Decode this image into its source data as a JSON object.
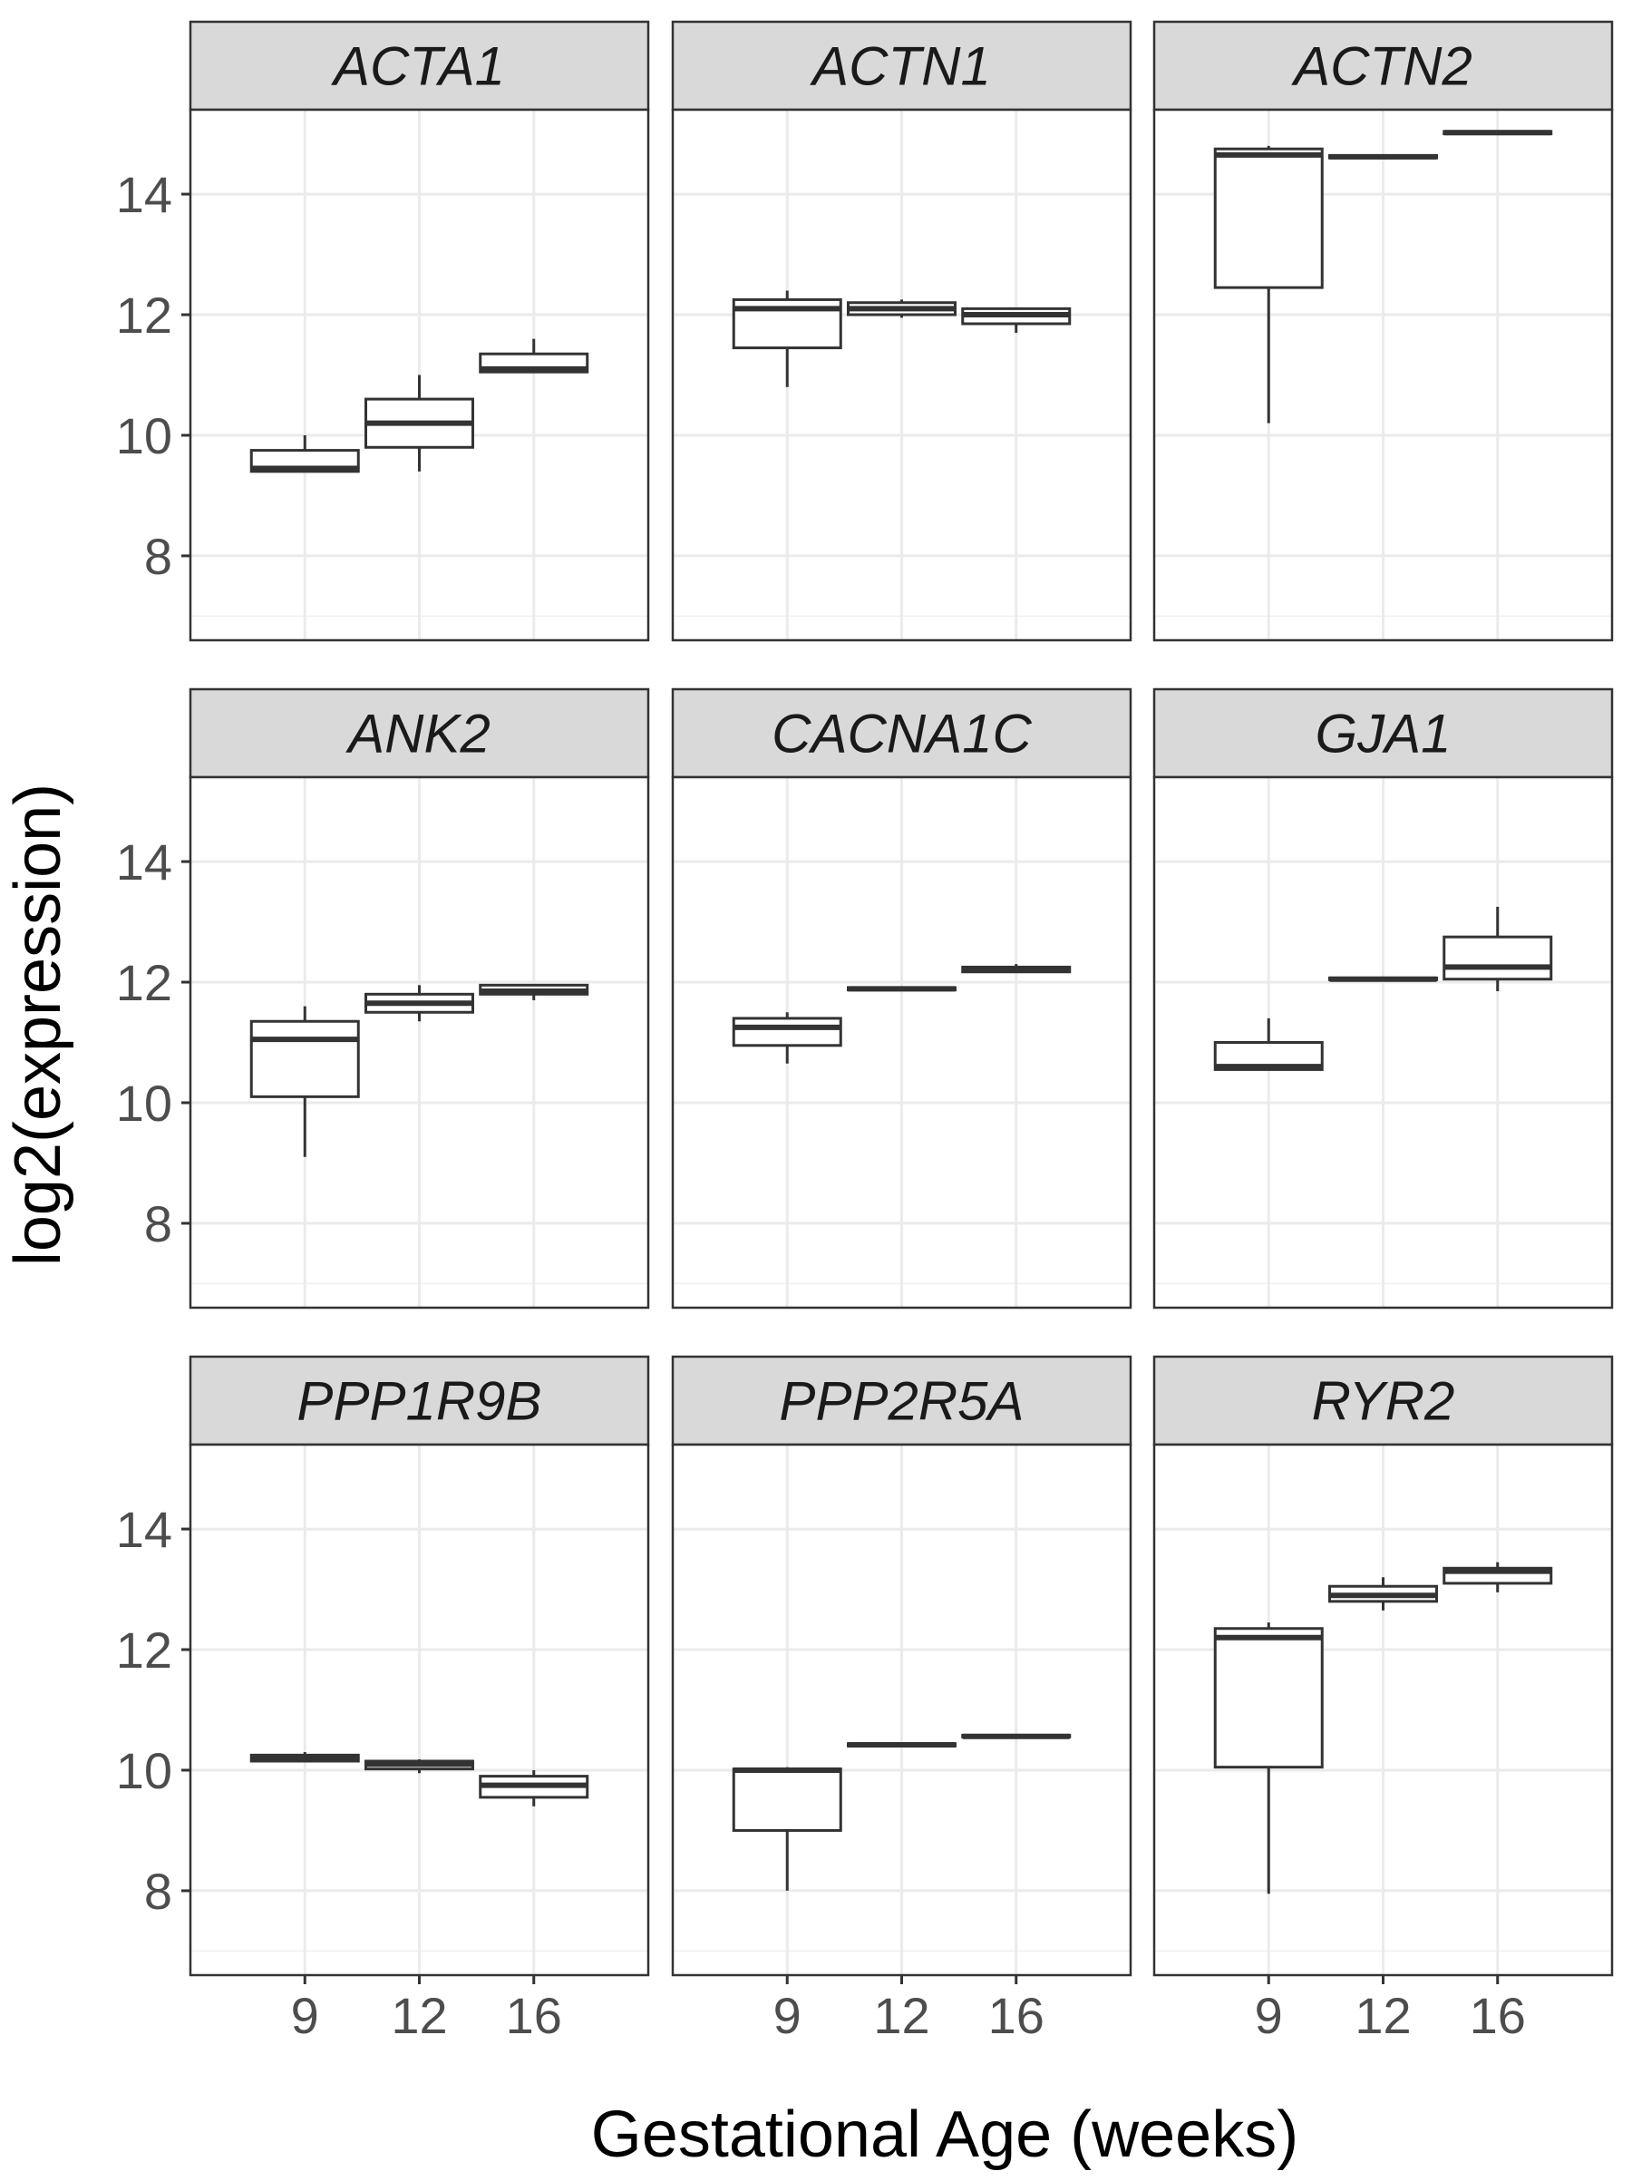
{
  "chart_data": {
    "type": "boxplot",
    "layout": "facet-grid-3x3",
    "xlabel": "Gestational Age (weeks)",
    "ylabel": "log2(expression)",
    "categories": [
      "9",
      "12",
      "16"
    ],
    "y_ticks": [
      8,
      10,
      12,
      14
    ],
    "ylim": [
      6.6,
      15.4
    ],
    "grid": true,
    "facets": [
      {
        "gene": "ACTA1",
        "boxes": [
          {
            "x": "9",
            "min": 9.4,
            "q1": 9.4,
            "median": 9.45,
            "q3": 9.75,
            "max": 10.0
          },
          {
            "x": "12",
            "min": 9.4,
            "q1": 9.8,
            "median": 10.2,
            "q3": 10.6,
            "max": 11.0
          },
          {
            "x": "16",
            "min": 11.05,
            "q1": 11.05,
            "median": 11.1,
            "q3": 11.35,
            "max": 11.6
          }
        ]
      },
      {
        "gene": "ACTN1",
        "boxes": [
          {
            "x": "9",
            "min": 10.8,
            "q1": 11.45,
            "median": 12.1,
            "q3": 12.25,
            "max": 12.4
          },
          {
            "x": "12",
            "min": 11.95,
            "q1": 12.0,
            "median": 12.1,
            "q3": 12.2,
            "max": 12.25
          },
          {
            "x": "16",
            "min": 11.7,
            "q1": 11.85,
            "median": 12.0,
            "q3": 12.1,
            "max": 12.1
          }
        ]
      },
      {
        "gene": "ACTN2",
        "boxes": [
          {
            "x": "9",
            "min": 10.2,
            "q1": 12.45,
            "median": 14.65,
            "q3": 14.75,
            "max": 14.8
          },
          {
            "x": "12",
            "min": 14.58,
            "q1": 14.6,
            "median": 14.62,
            "q3": 14.64,
            "max": 14.66
          },
          {
            "x": "16",
            "min": 14.98,
            "q1": 15.0,
            "median": 15.02,
            "q3": 15.04,
            "max": 15.06
          }
        ]
      },
      {
        "gene": "ANK2",
        "boxes": [
          {
            "x": "9",
            "min": 9.1,
            "q1": 10.1,
            "median": 11.05,
            "q3": 11.35,
            "max": 11.6
          },
          {
            "x": "12",
            "min": 11.35,
            "q1": 11.5,
            "median": 11.65,
            "q3": 11.8,
            "max": 11.95
          },
          {
            "x": "16",
            "min": 11.7,
            "q1": 11.8,
            "median": 11.85,
            "q3": 11.95,
            "max": 11.95
          }
        ]
      },
      {
        "gene": "CACNA1C",
        "boxes": [
          {
            "x": "9",
            "min": 10.65,
            "q1": 10.95,
            "median": 11.25,
            "q3": 11.4,
            "max": 11.5
          },
          {
            "x": "12",
            "min": 11.85,
            "q1": 11.87,
            "median": 11.89,
            "q3": 11.91,
            "max": 11.93
          },
          {
            "x": "16",
            "min": 12.15,
            "q1": 12.17,
            "median": 12.2,
            "q3": 12.25,
            "max": 12.3
          }
        ]
      },
      {
        "gene": "GJA1",
        "boxes": [
          {
            "x": "9",
            "min": 10.55,
            "q1": 10.55,
            "median": 10.6,
            "q3": 11.0,
            "max": 11.4
          },
          {
            "x": "12",
            "min": 12.02,
            "q1": 12.04,
            "median": 12.05,
            "q3": 12.07,
            "max": 12.09
          },
          {
            "x": "16",
            "min": 11.85,
            "q1": 12.05,
            "median": 12.25,
            "q3": 12.75,
            "max": 13.25
          }
        ]
      },
      {
        "gene": "PPP1R9B",
        "boxes": [
          {
            "x": "9",
            "min": 10.15,
            "q1": 10.15,
            "median": 10.2,
            "q3": 10.25,
            "max": 10.3
          },
          {
            "x": "12",
            "min": 9.95,
            "q1": 10.02,
            "median": 10.1,
            "q3": 10.15,
            "max": 10.18
          },
          {
            "x": "16",
            "min": 9.4,
            "q1": 9.55,
            "median": 9.75,
            "q3": 9.9,
            "max": 10.0
          }
        ]
      },
      {
        "gene": "PPP2R5A",
        "boxes": [
          {
            "x": "9",
            "min": 8.0,
            "q1": 9.0,
            "median": 10.0,
            "q3": 10.02,
            "max": 10.05
          },
          {
            "x": "12",
            "min": 10.38,
            "q1": 10.4,
            "median": 10.42,
            "q3": 10.44,
            "max": 10.46
          },
          {
            "x": "16",
            "min": 10.53,
            "q1": 10.55,
            "median": 10.56,
            "q3": 10.58,
            "max": 10.6
          }
        ]
      },
      {
        "gene": "RYR2",
        "boxes": [
          {
            "x": "9",
            "min": 7.95,
            "q1": 10.05,
            "median": 12.2,
            "q3": 12.35,
            "max": 12.45
          },
          {
            "x": "12",
            "min": 12.65,
            "q1": 12.8,
            "median": 12.9,
            "q3": 13.05,
            "max": 13.2
          },
          {
            "x": "16",
            "min": 12.95,
            "q1": 13.1,
            "median": 13.3,
            "q3": 13.35,
            "max": 13.45
          }
        ]
      }
    ]
  }
}
